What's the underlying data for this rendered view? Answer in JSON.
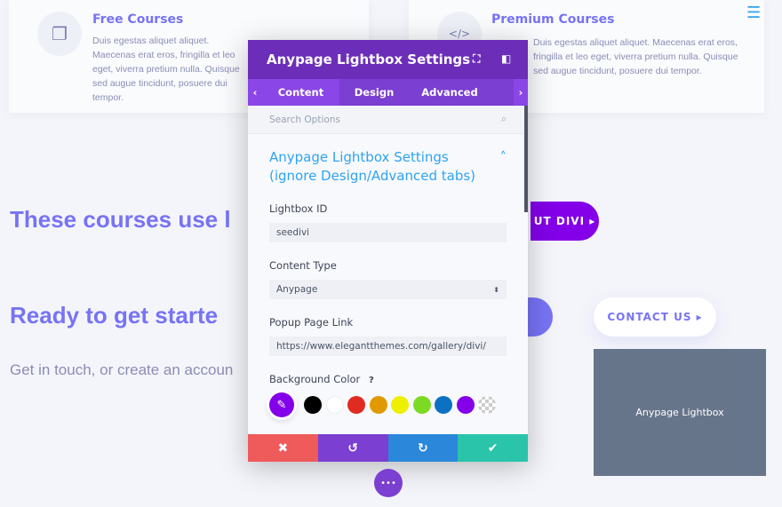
{
  "cards": [
    {
      "title": "Free Courses",
      "text": "Duis egestas aliquet aliquet. Maecenas erat eros, fringilla et leo eget, viverra pretium nulla. Quisque sed augue tincidunt, posuere dui tempor.",
      "icon": "documents-icon"
    },
    {
      "title": "Premium Courses",
      "text": "Duis egestas aliquet aliquet. Maecenas erat eros, fringilla et leo eget, viverra pretium nulla. Quisque sed augue tincidunt, posuere dui tempor.",
      "icon": "code-window-icon"
    }
  ],
  "page": {
    "heading1": "These courses use l",
    "heading2": "Ready to get starte",
    "subtext": "Get in touch, or create an accoun",
    "about_button": "UT DIVI ▸",
    "contact_button": "CONTACT US ▸",
    "lightbox_label": "Anypage Lightbox",
    "menu_icon": "☰"
  },
  "panel": {
    "title": "Anypage Lightbox Settings",
    "tabs": [
      "Content",
      "Design",
      "Advanced"
    ],
    "search_placeholder": "Search Options",
    "section_title": "Anypage Lightbox Settings (ignore Design/Advanced tabs)",
    "fields": {
      "lightbox_id_label": "Lightbox ID",
      "lightbox_id_value": "seedivi",
      "content_type_label": "Content Type",
      "content_type_value": "Anypage",
      "popup_link_label": "Popup Page Link",
      "popup_link_value": "https://www.elegantthemes.com/gallery/divi/",
      "bg_color_label": "Background Color",
      "help": "?"
    },
    "swatches": [
      "#000000",
      "#ffffff",
      "#e02b20",
      "#e09900",
      "#edf000",
      "#7cda24",
      "#0c71c3",
      "#8300e9"
    ],
    "selected_color": "#8300e9",
    "footer": {
      "cancel": "✖",
      "undo": "↺",
      "redo": "↻",
      "save": "✔"
    },
    "footer_colors": [
      "#ef5a5a",
      "#7b3fd1",
      "#2b87da",
      "#29c4a9"
    ]
  },
  "more_button": "•••"
}
